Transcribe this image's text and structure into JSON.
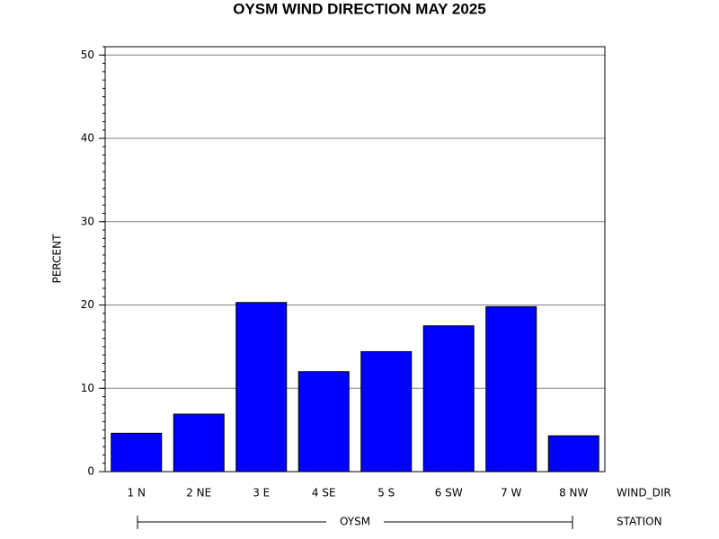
{
  "chart_data": {
    "type": "bar",
    "title": "OYSM WIND DIRECTION MAY 2025",
    "y_label": "PERCENT",
    "x_label": "WIND_DIR",
    "group_label": "OYSM",
    "group_axis_label": "STATION",
    "categories": [
      "1 N",
      "2 NE",
      "3 E",
      "4 SE",
      "5 S",
      "6 SW",
      "7 W",
      "8 NW"
    ],
    "values": [
      4.6,
      6.9,
      20.3,
      12.0,
      14.4,
      17.5,
      19.8,
      4.3
    ],
    "color": "#0000ff",
    "ylim": [
      0,
      51
    ],
    "yticks": [
      0,
      10,
      20,
      30,
      40,
      50
    ],
    "minor_yticks": [
      0,
      1,
      2,
      3,
      4,
      5,
      6,
      7,
      8,
      9,
      10,
      11,
      12,
      13,
      14,
      15,
      16,
      17,
      18,
      19,
      20,
      21,
      22,
      23,
      24,
      25,
      26,
      27,
      28,
      29,
      30,
      31,
      32,
      33,
      34,
      35,
      36,
      37,
      38,
      39,
      40,
      41,
      42,
      43,
      44,
      45,
      46,
      47,
      48,
      49,
      50,
      51
    ],
    "grid": true
  }
}
